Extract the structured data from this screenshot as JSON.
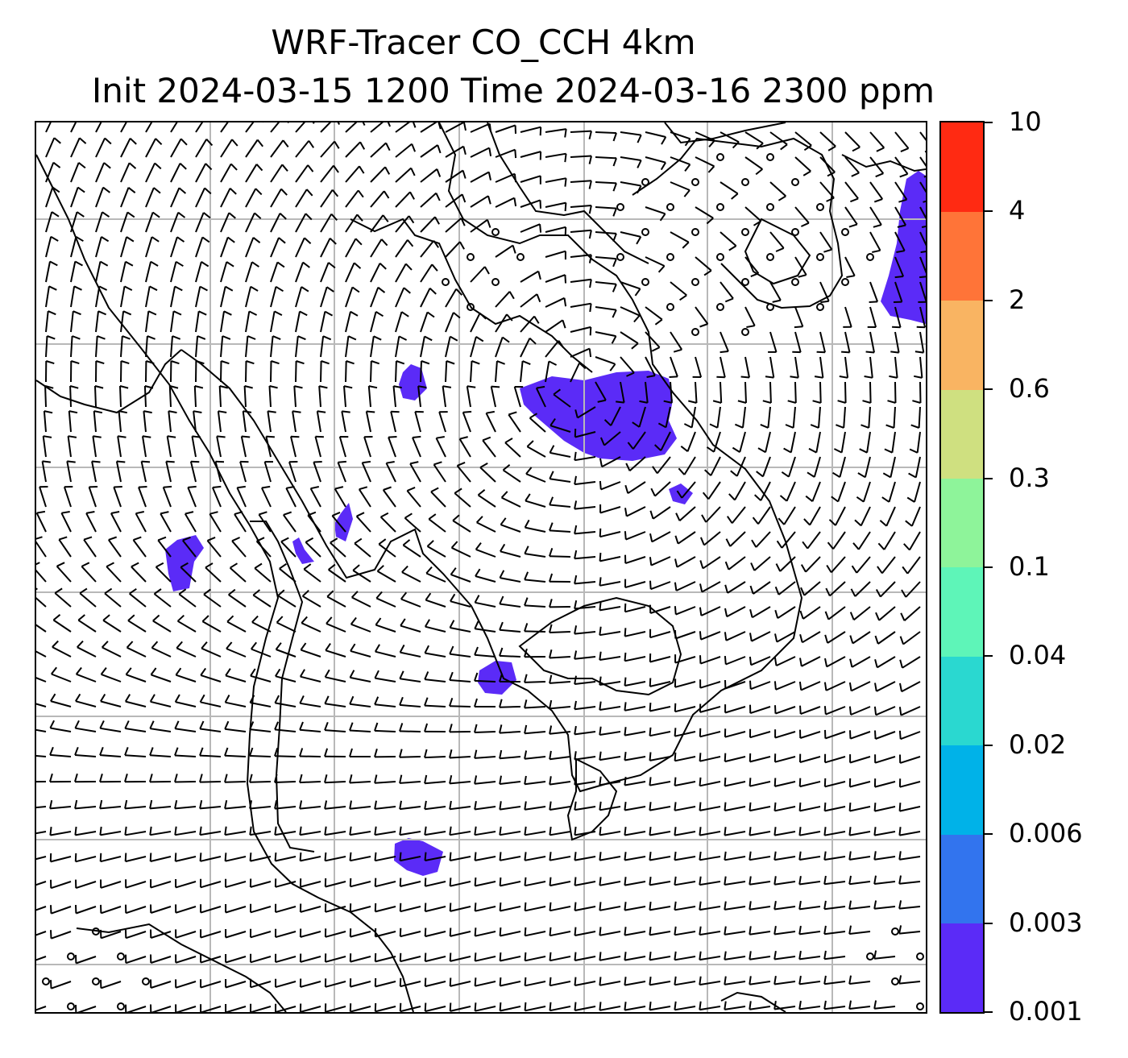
{
  "figure": {
    "title_line1": "WRF-Tracer CO_CCH 4km",
    "title_line2": "Init 2024-03-15 1200 Time 2024-03-16 2300 ppm"
  },
  "map": {
    "overlay": "wind barbs with coastlines and lat-lon grid",
    "gridlines": true,
    "calm_marker": "open circle"
  },
  "colorbar": {
    "levels": [
      "0.001",
      "0.003",
      "0.006",
      "0.02",
      "0.04",
      "0.1",
      "0.3",
      "0.6",
      "2",
      "4",
      "10"
    ],
    "colors": [
      "#5b2bf7",
      "#3274ee",
      "#00b2e8",
      "#2ad8d0",
      "#5ef5b8",
      "#8ef49a",
      "#cfe080",
      "#f9b462",
      "#ff7438",
      "#ff2a12"
    ]
  },
  "tracer_plumes_color": "#5b2bf7"
}
